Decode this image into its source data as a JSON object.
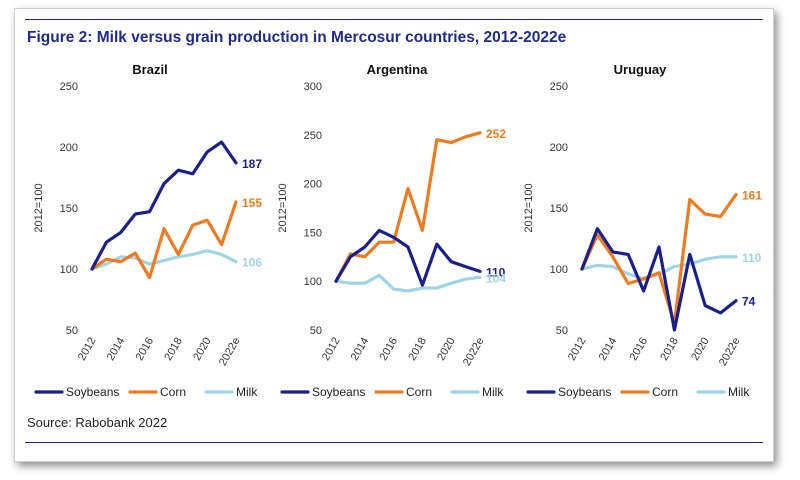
{
  "figure_title": "Figure 2: Milk versus grain production in Mercosur countries, 2012-2022e",
  "source": "Source: Rabobank 2022",
  "colors": {
    "soybeans": "#1a1f8c",
    "corn": "#f07a1e",
    "milk": "#9fd4e6",
    "axis_text": "#333333",
    "title": "#1f2b8c"
  },
  "chart_data": [
    {
      "type": "line",
      "title": "Brazil",
      "ylabel": "2012=100",
      "ylim": [
        50,
        250
      ],
      "yticks": [
        50,
        100,
        150,
        200,
        250
      ],
      "x": [
        "2012",
        "2013",
        "2014",
        "2015",
        "2016",
        "2017",
        "2018",
        "2019",
        "2020",
        "2021",
        "2022e"
      ],
      "xtick_labels": [
        "2012",
        "2014",
        "2016",
        "2018",
        "2020",
        "2022e"
      ],
      "series": [
        {
          "name": "Soybeans",
          "key": "soybeans",
          "values": [
            100,
            122,
            130,
            145,
            147,
            170,
            181,
            178,
            196,
            204,
            187
          ],
          "end_label": "187"
        },
        {
          "name": "Corn",
          "key": "corn",
          "values": [
            100,
            108,
            106,
            113,
            93,
            133,
            112,
            136,
            140,
            120,
            155
          ],
          "end_label": "155"
        },
        {
          "name": "Milk",
          "key": "milk",
          "values": [
            100,
            104,
            110,
            109,
            104,
            107,
            110,
            112,
            115,
            112,
            106
          ],
          "end_label": "106"
        }
      ],
      "legend": [
        "Soybeans",
        "Corn",
        "Milk"
      ]
    },
    {
      "type": "line",
      "title": "Argentina",
      "ylabel": "2012=100",
      "ylim": [
        50,
        300
      ],
      "yticks": [
        50,
        100,
        150,
        200,
        250,
        300
      ],
      "x": [
        "2012",
        "2013",
        "2014",
        "2015",
        "2016",
        "2017",
        "2018",
        "2019",
        "2020",
        "2021",
        "2022e"
      ],
      "xtick_labels": [
        "2012",
        "2014",
        "2016",
        "2018",
        "2020",
        "2022e"
      ],
      "series": [
        {
          "name": "Soybeans",
          "key": "soybeans",
          "values": [
            100,
            125,
            135,
            152,
            145,
            135,
            96,
            138,
            120,
            115,
            110
          ],
          "end_label": "110"
        },
        {
          "name": "Corn",
          "key": "corn",
          "values": [
            100,
            128,
            125,
            140,
            140,
            195,
            152,
            245,
            242,
            248,
            252
          ],
          "end_label": "252"
        },
        {
          "name": "Milk",
          "key": "milk",
          "values": [
            100,
            98,
            98,
            106,
            92,
            90,
            93,
            93,
            98,
            102,
            104
          ],
          "end_label": "104"
        }
      ],
      "legend": [
        "Soybeans",
        "Corn",
        "Milk"
      ]
    },
    {
      "type": "line",
      "title": "Uruguay",
      "ylabel": "2012=100",
      "ylim": [
        50,
        250
      ],
      "yticks": [
        50,
        100,
        150,
        200,
        250
      ],
      "x": [
        "2012",
        "2013",
        "2014",
        "2015",
        "2016",
        "2017",
        "2018",
        "2019",
        "2020",
        "2021",
        "2022e"
      ],
      "xtick_labels": [
        "2012",
        "2014",
        "2016",
        "2018",
        "2020",
        "2022e"
      ],
      "series": [
        {
          "name": "Soybeans",
          "key": "soybeans",
          "values": [
            100,
            133,
            114,
            112,
            82,
            118,
            50,
            112,
            70,
            64,
            74
          ],
          "end_label": "74"
        },
        {
          "name": "Corn",
          "key": "corn",
          "values": [
            100,
            128,
            110,
            88,
            92,
            97,
            55,
            157,
            145,
            143,
            161
          ],
          "end_label": "161"
        },
        {
          "name": "Milk",
          "key": "milk",
          "values": [
            100,
            103,
            102,
            96,
            92,
            96,
            102,
            104,
            108,
            110,
            110
          ],
          "end_label": "110"
        }
      ],
      "legend": [
        "Soybeans",
        "Corn",
        "Milk"
      ]
    }
  ]
}
